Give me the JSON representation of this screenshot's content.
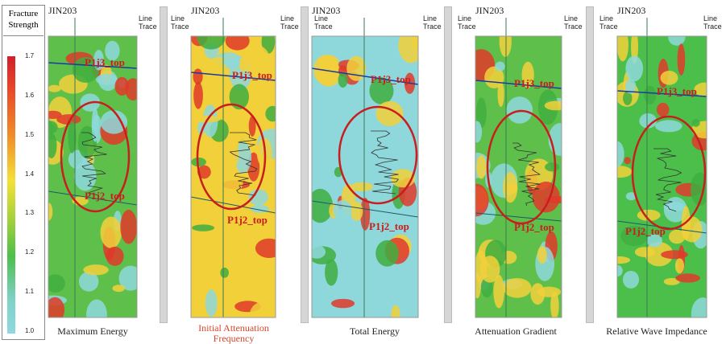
{
  "legend": {
    "title": "Fracture Strength",
    "ticks": [
      "1.7",
      "1.6",
      "1.5",
      "1.4",
      "1.3",
      "1.2",
      "1.1",
      "1.0"
    ]
  },
  "line_trace": "Line Trace",
  "panels": [
    {
      "well": "JIN203",
      "upper_horizon": "P1j3_top",
      "lower_horizon": "P1j2_top",
      "caption": "Maximum Energy"
    },
    {
      "well": "JIN203",
      "upper_horizon": "P1j3_top",
      "lower_horizon": "P1j2_top",
      "caption": "Initial Attenuation Frequency"
    },
    {
      "well": "JIN203",
      "upper_horizon": "P1j3_top",
      "lower_horizon": "P1j2_top",
      "caption": "Total Energy"
    },
    {
      "well": "JIN203",
      "upper_horizon": "P1j3_top",
      "lower_horizon": "P1j2_top",
      "caption": "Attenuation Gradient"
    },
    {
      "well": "JIN203",
      "upper_horizon": "P1j3_top",
      "lower_horizon": "P1j2_top",
      "caption": "Relative Wave Impedance"
    }
  ]
}
